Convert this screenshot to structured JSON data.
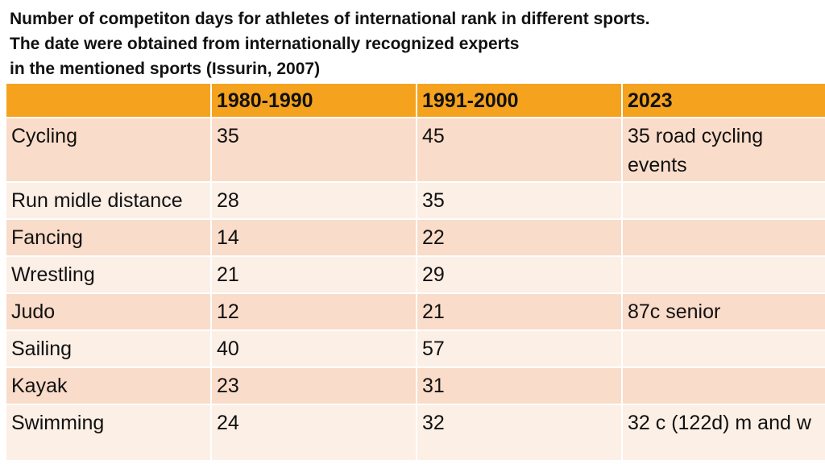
{
  "title": {
    "lines": [
      "Number of competiton days for athletes of international rank in different sports.",
      "The date were obtained from internationally recognized experts",
      "in the mentioned sports (Issurin, 2007)"
    ]
  },
  "table": {
    "headers": [
      "",
      "1980-1990",
      "1991-2000",
      "2023"
    ],
    "rows": [
      {
        "sport": "Cycling",
        "p1": "35",
        "p2": "45",
        "p3": "35 road cycling events"
      },
      {
        "sport": "Run midle distance",
        "p1": "28",
        "p2": "35",
        "p3": ""
      },
      {
        "sport": "Fancing",
        "p1": "14",
        "p2": "22",
        "p3": ""
      },
      {
        "sport": "Wrestling",
        "p1": "21",
        "p2": "29",
        "p3": ""
      },
      {
        "sport": "Judo",
        "p1": "12",
        "p2": "21",
        "p3": "87c senior"
      },
      {
        "sport": "Sailing",
        "p1": "40",
        "p2": "57",
        "p3": ""
      },
      {
        "sport": "Kayak",
        "p1": "23",
        "p2": "31",
        "p3": ""
      },
      {
        "sport": "Swimming",
        "p1": "24",
        "p2": "32",
        "p3": "32 c (122d) m and w"
      }
    ]
  },
  "colors": {
    "header_bg": "#f5a31e",
    "row_dark": "#f9dcc9",
    "row_light": "#fcefe6"
  }
}
